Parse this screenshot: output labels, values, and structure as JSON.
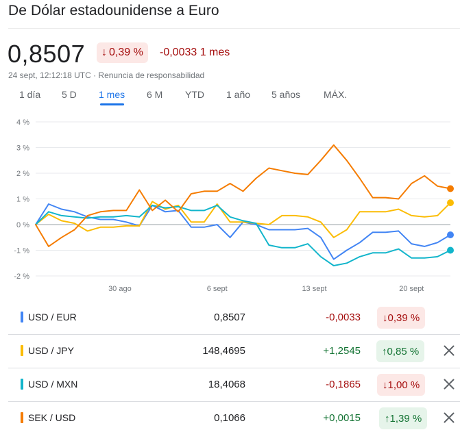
{
  "header": {
    "title": "De Dólar estadounidense a Euro"
  },
  "summary": {
    "price": "0,8507",
    "pct_arrow": "↓",
    "pct_change": "0,39 %",
    "abs_change": "-0,0033 1 mes",
    "timestamp": "24 sept, 12:12:18 UTC",
    "separator": " · ",
    "disclaimer": "Renuncia de responsabilidad"
  },
  "ranges": {
    "selected": "1 mes",
    "items": [
      "1 día",
      "5 D",
      "1 mes",
      "6 M",
      "YTD",
      "1 año",
      "5 años",
      "MÁX."
    ]
  },
  "chart_data": {
    "type": "line",
    "yunit": "%",
    "ylim": [
      -2,
      4
    ],
    "y_ticks": [
      "4 %",
      "3 %",
      "2 %",
      "1 %",
      "0 %",
      "-1 %",
      "-2 %"
    ],
    "x_ticks": [
      "30 ago",
      "6 sept",
      "13 sept",
      "20 sept"
    ],
    "grid": true,
    "legend": "none",
    "x_count": 33,
    "x_tick_index": [
      6.5,
      14,
      21.5,
      29
    ],
    "series": [
      {
        "name": "USD / EUR",
        "color": "#4285f4",
        "values": [
          0,
          0.8,
          0.6,
          0.5,
          0.3,
          0.2,
          0.2,
          0.1,
          -0.05,
          0.75,
          0.5,
          0.55,
          -0.1,
          -0.1,
          0,
          -0.5,
          0.1,
          0,
          -0.2,
          -0.2,
          -0.2,
          -0.15,
          -0.5,
          -1.35,
          -1,
          -0.7,
          -0.3,
          -0.3,
          -0.25,
          -0.75,
          -0.85,
          -0.7,
          -0.4
        ]
      },
      {
        "name": "USD / JPY",
        "color": "#fbbc04",
        "values": [
          0,
          0.4,
          0.15,
          0.05,
          -0.25,
          -0.1,
          -0.1,
          -0.05,
          -0.05,
          0.9,
          0.6,
          0.75,
          0.1,
          0.1,
          0.8,
          0.1,
          0.1,
          0.05,
          0,
          0.35,
          0.35,
          0.3,
          0.1,
          -0.5,
          -0.2,
          0.5,
          0.5,
          0.5,
          0.6,
          0.35,
          0.3,
          0.35,
          0.85
        ]
      },
      {
        "name": "USD / MXN",
        "color": "#12b5cb",
        "values": [
          0,
          0.5,
          0.35,
          0.3,
          0.25,
          0.3,
          0.3,
          0.35,
          0.3,
          0.75,
          0.65,
          0.7,
          0.55,
          0.55,
          0.75,
          0.3,
          0.15,
          0.05,
          -0.8,
          -0.9,
          -0.9,
          -0.75,
          -1.25,
          -1.6,
          -1.5,
          -1.25,
          -1.1,
          -1.1,
          -0.95,
          -1.3,
          -1.3,
          -1.25,
          -1
        ]
      },
      {
        "name": "SEK / USD",
        "color": "#f57c00",
        "values": [
          0,
          -0.85,
          -0.5,
          -0.2,
          0.35,
          0.5,
          0.55,
          0.55,
          1.35,
          0.55,
          0.95,
          0.5,
          1.2,
          1.3,
          1.3,
          1.6,
          1.3,
          1.8,
          2.2,
          2.1,
          2,
          1.95,
          2.5,
          3.1,
          2.5,
          1.8,
          1.05,
          1.05,
          1,
          1.6,
          1.9,
          1.5,
          1.4
        ]
      }
    ]
  },
  "rows": [
    {
      "pair": "USD / EUR",
      "color": "#4285f4",
      "rate": "0,8507",
      "change": "-0,0033",
      "dir": "neg",
      "arrow": "↓",
      "pct": "0,39 %",
      "removable": false
    },
    {
      "pair": "USD / JPY",
      "color": "#fbbc04",
      "rate": "148,4695",
      "change": "+1,2545",
      "dir": "pos",
      "arrow": "↑",
      "pct": "0,85 %",
      "removable": true
    },
    {
      "pair": "USD / MXN",
      "color": "#12b5cb",
      "rate": "18,4068",
      "change": "-0,1865",
      "dir": "neg",
      "arrow": "↓",
      "pct": "1,00 %",
      "removable": true
    },
    {
      "pair": "SEK / USD",
      "color": "#f57c00",
      "rate": "0,1066",
      "change": "+0,0015",
      "dir": "pos",
      "arrow": "↑",
      "pct": "1,39 %",
      "removable": true
    }
  ]
}
